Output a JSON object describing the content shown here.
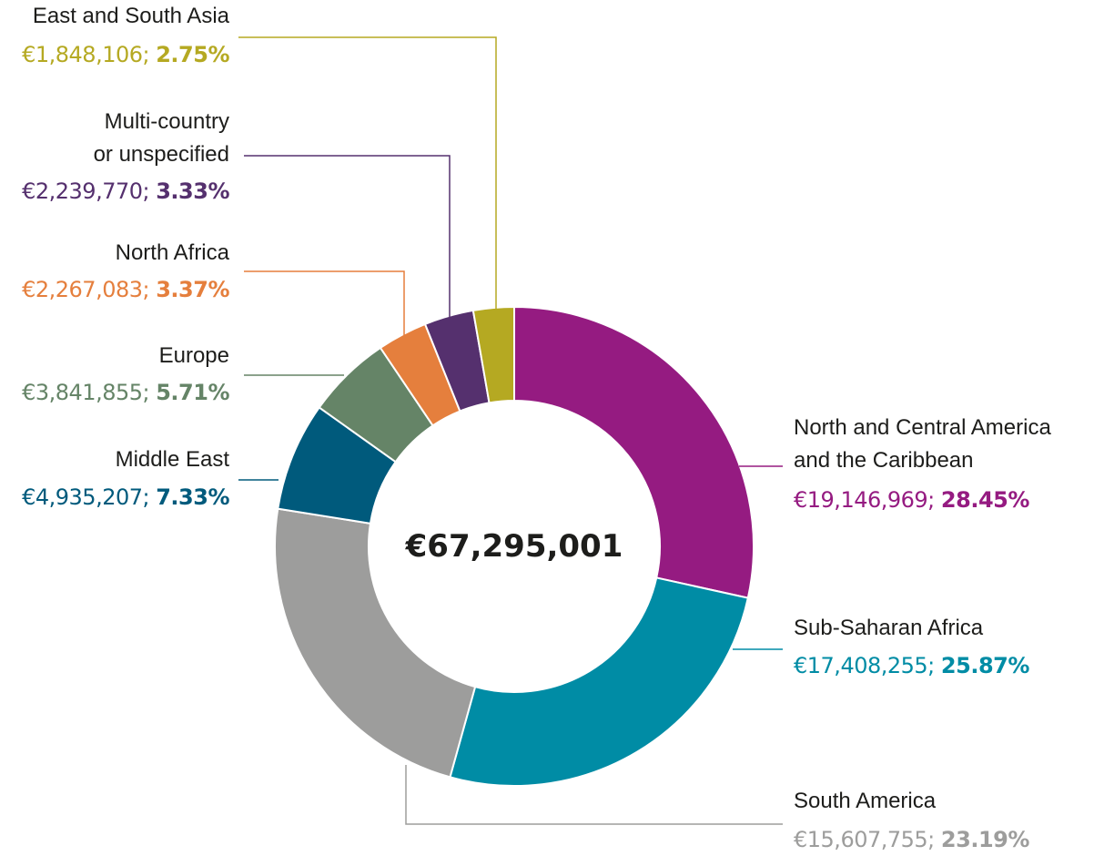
{
  "chart_data": {
    "type": "pie",
    "donut": true,
    "center_label": "€67,295,001",
    "categories": [
      "North and Central America\nand the Caribbean",
      "Sub-Saharan Africa",
      "South America",
      "Middle East",
      "Europe",
      "North Africa",
      "Multi-country\nor unspecified",
      "East and South Asia"
    ],
    "values": [
      19146969,
      17408255,
      15607755,
      4935207,
      3841855,
      2267083,
      2239770,
      1848106
    ],
    "value_labels": [
      "€19,146,969;",
      "€17,408,255;",
      "€15,607,755;",
      "€4,935,207;",
      "€3,841,855;",
      "€2,267,083;",
      "€2,239,770;",
      "€1,848,106;"
    ],
    "percent_labels": [
      "28.45%",
      "25.87%",
      "23.19%",
      "7.33%",
      "5.71%",
      "3.37%",
      "3.33%",
      "2.75%"
    ],
    "colors": [
      "#951b81",
      "#008ca5",
      "#9d9d9c",
      "#005a7c",
      "#658467",
      "#e57f3d",
      "#55306e",
      "#b5a922"
    ]
  }
}
